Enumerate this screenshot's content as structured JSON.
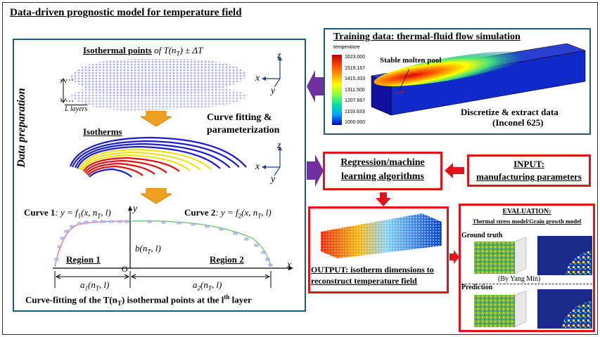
{
  "title": "Data-driven prognostic model for temperature field",
  "prep": {
    "side_label": "Data preparation",
    "isothermal_points": "Isothermal points",
    "isothermal_formula": " of T(n",
    "isothermal_formula_tail": ") ± ΔT",
    "isothermal_sub": "T",
    "l_layers": "L layers",
    "curve_fitting": "Curve fitting &",
    "parameterization": "parameterization",
    "isotherms": "Isotherms",
    "curve1_label": "Curve 1",
    "curve1_formula": ": y = f",
    "curve1_formula_sub": "1",
    "curve1_formula_tail": "(x, n",
    "curve1_formula_tail2": ", l)",
    "curve2_label": "Curve 2",
    "curve2_formula": ": y = f",
    "curve2_formula_sub": "2",
    "curve2_formula_tail": "(x, n",
    "curve2_formula_tail2": ", l)",
    "region1": "Region 1",
    "region2": "Region 2",
    "b_label": "b(n",
    "b_label_tail": ", l)",
    "a1_label": "a",
    "a1_sub": "1",
    "a1_tail": "(n",
    "a1_tail2": ", l)",
    "a2_label": "a",
    "a2_sub": "2",
    "a2_tail": "(n",
    "a2_tail2": ", l)",
    "origin": "O",
    "axis_x": "x",
    "axis_y": "y",
    "axis_z": "z",
    "caption_pre": "Curve-fitting of the T(n",
    "caption_sub": "T",
    "caption_mid": ") isothermal points at the l",
    "caption_sup": "th",
    "caption_tail": " layer"
  },
  "training": {
    "title": "Training data: thermal-fluid flow simulation",
    "colorbar_title": "temperature",
    "colorbar_ticks": [
      "1623.000",
      "1519.167",
      "1415.333",
      "1311.500",
      "1207.667",
      "1103.833",
      "1000.000"
    ],
    "molten_pool": "Stable molten pool",
    "discretize": "Discretize & extract data",
    "material": "(Inconel 625)"
  },
  "regression": {
    "line1": "Regression/machine",
    "line2": "learning algorithms"
  },
  "input": {
    "line1": "INPUT:",
    "line2": "manufacturing parameters"
  },
  "output": {
    "line1": "OUTPUT: isotherm dimensions to",
    "line2": "reconstruct temperature field"
  },
  "evaluation": {
    "title": "EVALUATION:",
    "subtitle": "Thermal stress model/Grain growth model",
    "ground_truth": "Ground truth",
    "credit": "(By Yang Min)",
    "prediction": "Prediction"
  },
  "colors": {
    "frame_blue": "#1f5a7a",
    "red": "#e2141b",
    "purple_arrow": "#7030a0",
    "orange_arrow": "#f0a020"
  }
}
